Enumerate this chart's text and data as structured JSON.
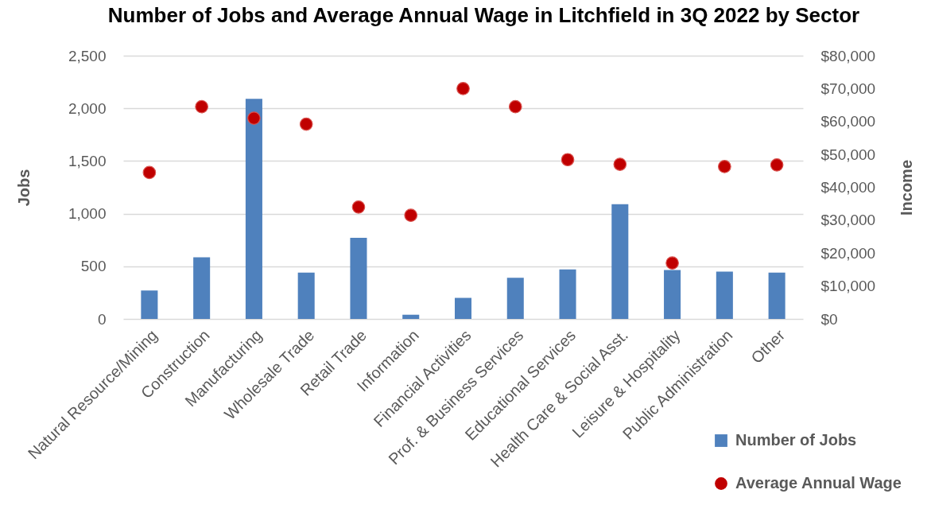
{
  "chart_data": {
    "type": "bar",
    "title": "Number of Jobs and Average Annual Wage in Litchfield in 3Q 2022 by Sector",
    "ylabel": "Jobs",
    "y2label": "Income",
    "categories": [
      "Natural Resource/Mining",
      "Construction",
      "Manufacturing",
      "Wholesale Trade",
      "Retail Trade",
      "Information",
      "Financial Activities",
      "Prof. & Business Services",
      "Educational Services",
      "Health Care & Social Asst.",
      "Leisure & Hospitality",
      "Public Administration",
      "Other"
    ],
    "series": [
      {
        "name": "Number of Jobs",
        "color": "#4f81bd",
        "values": [
          270,
          585,
          2090,
          440,
          770,
          40,
          200,
          390,
          470,
          1090,
          465,
          450,
          440
        ]
      },
      {
        "name": "Average Annual Wage",
        "type": "scatter",
        "axis": "y2",
        "color": "#c00000",
        "values": [
          44500,
          64500,
          61000,
          59200,
          34000,
          31500,
          70000,
          64500,
          48400,
          47000,
          17000,
          46300,
          46800
        ]
      }
    ],
    "ylim": [
      0,
      2500
    ],
    "yticks": [
      0,
      500,
      {
        "value": 1000,
        "label": "1,000"
      },
      {
        "value": 1500,
        "label": "1,500"
      },
      {
        "value": 2000,
        "label": "2,000"
      },
      {
        "value": 2500,
        "label": "2,500"
      }
    ],
    "y2lim": [
      0,
      80000
    ],
    "y2ticks": [
      {
        "value": 0,
        "label": "$0"
      },
      {
        "value": 10000,
        "label": "$10,000"
      },
      {
        "value": 20000,
        "label": "$20,000"
      },
      {
        "value": 30000,
        "label": "$30,000"
      },
      {
        "value": 40000,
        "label": "$40,000"
      },
      {
        "value": 50000,
        "label": "$50,000"
      },
      {
        "value": 60000,
        "label": "$60,000"
      },
      {
        "value": 70000,
        "label": "$70,000"
      },
      {
        "value": 80000,
        "label": "$80,000"
      }
    ],
    "grid": "y",
    "legend": "bottom right",
    "marker": "circle"
  }
}
